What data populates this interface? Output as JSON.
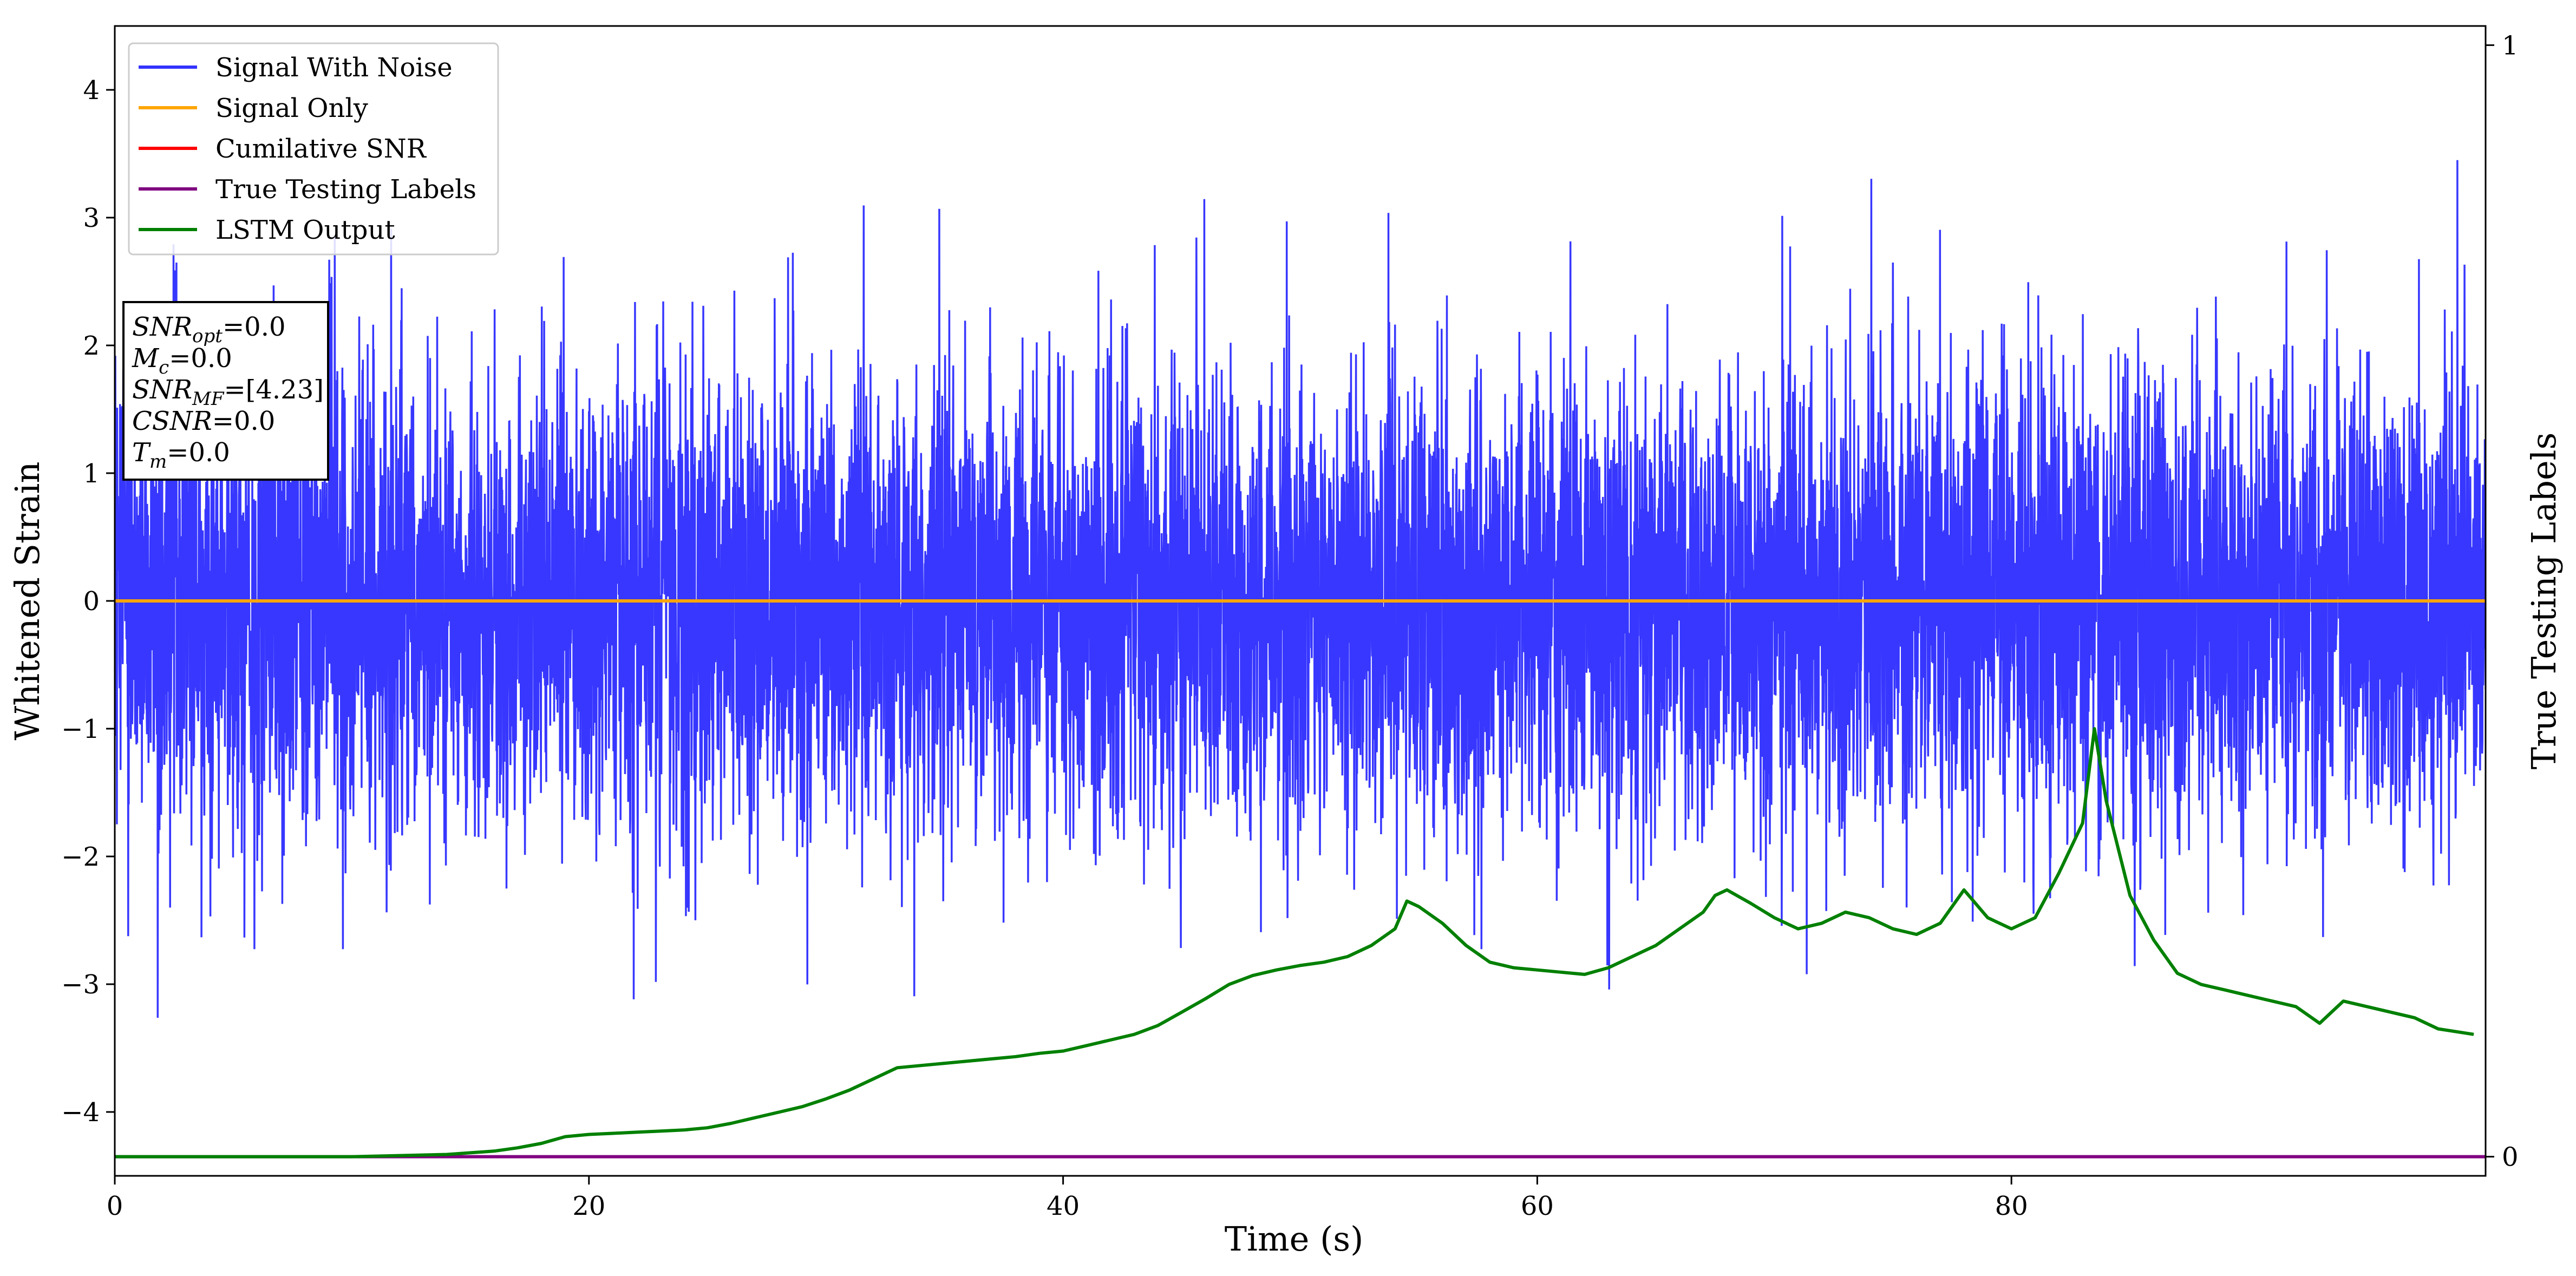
{
  "chart_data": {
    "type": "line",
    "xlabel": "Time (s)",
    "ylabel": "Whitened Strain",
    "y2label": "True Testing Labels",
    "xlim": [
      0,
      100
    ],
    "ylim": [
      -4.5,
      4.5
    ],
    "y2lim": [
      0,
      1
    ],
    "xticks": [
      "0",
      "20",
      "40",
      "60",
      "80"
    ],
    "xtick_values": [
      0,
      20,
      40,
      60,
      80
    ],
    "yticks": [
      "−4",
      "−3",
      "−2",
      "−1",
      "0",
      "1",
      "2",
      "3",
      "4"
    ],
    "ytick_values": [
      -4,
      -3,
      -2,
      -1,
      0,
      1,
      2,
      3,
      4
    ],
    "y2ticks": [
      "0",
      "1"
    ],
    "y2tick_values": [
      0,
      1
    ],
    "grid": false,
    "legend_position": "top-left",
    "series": [
      {
        "name": "Signal With Noise",
        "color": "#3333ff",
        "axis": "left",
        "kind": "noise",
        "approx_std": 0.9,
        "approx_range": [
          -4.1,
          3.45
        ],
        "note": ""
      },
      {
        "name": "Signal Only",
        "color": "#ffa500",
        "axis": "left",
        "x": [
          0,
          100
        ],
        "y": [
          0,
          0
        ]
      },
      {
        "name": "Cumilative SNR",
        "color": "#ff0000",
        "axis": "right",
        "x": [],
        "y": []
      },
      {
        "name": "True Testing Labels",
        "color": "#800080",
        "axis": "right",
        "x": [
          0,
          100
        ],
        "y": [
          0,
          0
        ]
      },
      {
        "name": "LSTM Output",
        "color": "#008000",
        "axis": "right",
        "x": [
          0,
          10,
          14,
          16,
          17,
          18,
          19,
          20,
          21,
          22,
          23,
          24,
          25,
          26,
          27,
          28,
          29,
          30,
          31,
          32,
          33,
          34,
          35,
          36,
          37,
          38,
          39,
          40,
          41,
          42,
          43,
          44,
          45,
          46,
          47,
          48,
          49,
          50,
          51,
          52,
          53,
          54,
          54.5,
          55,
          56,
          57,
          58,
          59,
          60,
          61,
          62,
          63,
          64,
          65,
          66,
          67,
          67.5,
          68,
          69,
          70,
          71,
          72,
          73,
          74,
          75,
          76,
          77,
          78,
          79,
          80,
          81,
          82,
          83,
          83.5,
          84,
          85,
          86,
          87,
          88,
          89,
          90,
          91,
          92,
          93,
          94,
          95,
          96,
          97,
          98,
          99.5
        ],
        "y": [
          0,
          0,
          0.002,
          0.005,
          0.008,
          0.012,
          0.018,
          0.02,
          0.021,
          0.022,
          0.023,
          0.024,
          0.026,
          0.03,
          0.035,
          0.04,
          0.045,
          0.052,
          0.06,
          0.07,
          0.08,
          0.082,
          0.084,
          0.086,
          0.088,
          0.09,
          0.093,
          0.095,
          0.1,
          0.105,
          0.11,
          0.118,
          0.13,
          0.142,
          0.155,
          0.163,
          0.168,
          0.172,
          0.175,
          0.18,
          0.19,
          0.205,
          0.23,
          0.225,
          0.21,
          0.19,
          0.175,
          0.17,
          0.168,
          0.166,
          0.164,
          0.17,
          0.18,
          0.19,
          0.205,
          0.22,
          0.235,
          0.24,
          0.228,
          0.215,
          0.205,
          0.21,
          0.22,
          0.215,
          0.205,
          0.2,
          0.21,
          0.24,
          0.215,
          0.205,
          0.215,
          0.255,
          0.3,
          0.385,
          0.32,
          0.235,
          0.195,
          0.165,
          0.155,
          0.15,
          0.145,
          0.14,
          0.135,
          0.12,
          0.14,
          0.135,
          0.13,
          0.125,
          0.115,
          0.11
        ]
      }
    ],
    "annotation": {
      "lines": [
        {
          "var": "SNR",
          "sub": "opt",
          "rest": "=0.0"
        },
        {
          "var": "M",
          "sub": "c",
          "rest": "=0.0"
        },
        {
          "var": "SNR",
          "sub": "MF",
          "rest": "=[4.23]"
        },
        {
          "var": "CSNR",
          "sub": "",
          "rest": "=0.0"
        },
        {
          "var": "T",
          "sub": "m",
          "rest": "=0.0"
        }
      ]
    }
  }
}
